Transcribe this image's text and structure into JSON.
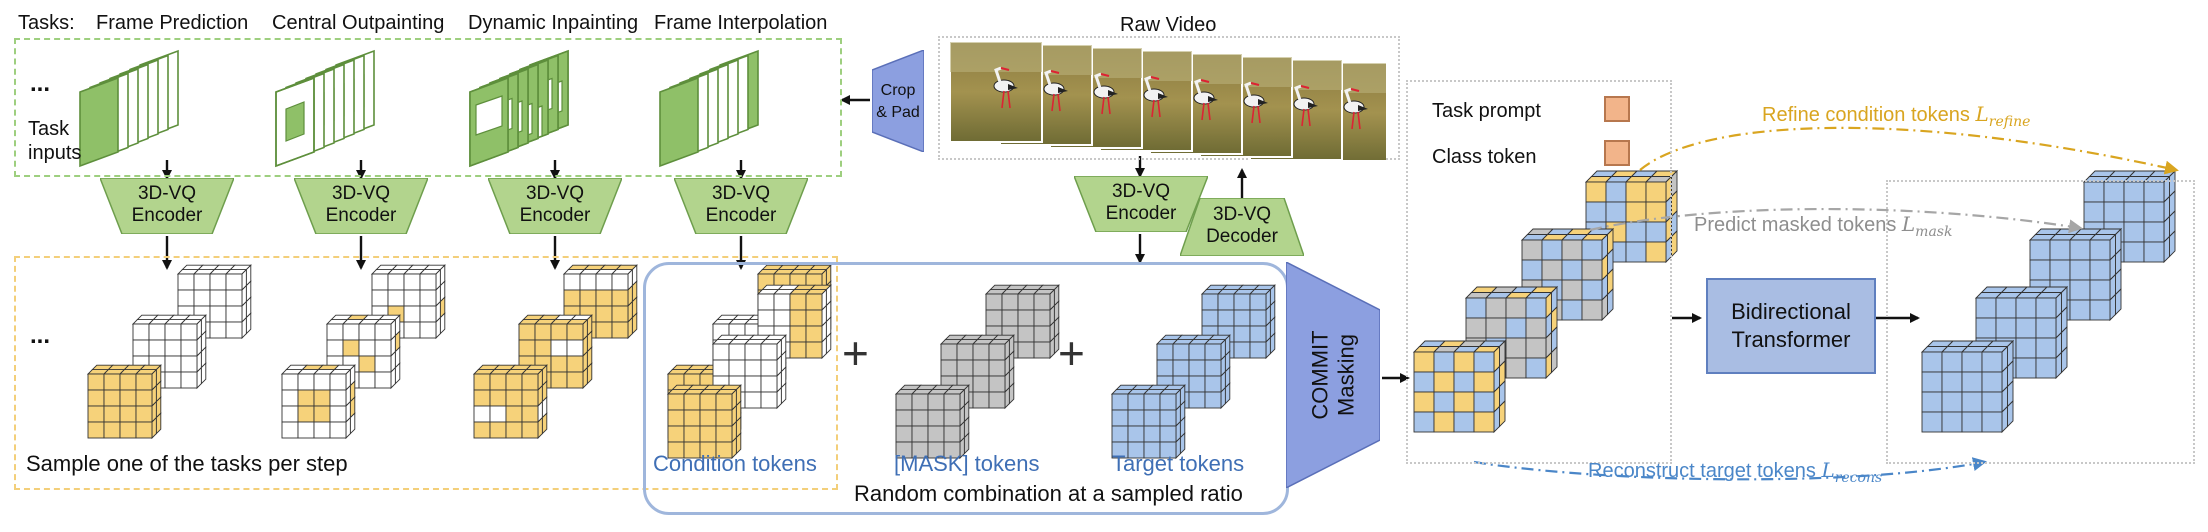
{
  "header": {
    "tasks_label": "Tasks:",
    "tasks": [
      "Frame Prediction",
      "Central Outpainting",
      "Dynamic Inpainting",
      "Frame Interpolation"
    ],
    "raw_video": "Raw Video"
  },
  "left": {
    "ellipsis_top": "...",
    "ellipsis_bottom": "...",
    "task_inputs_line1": "Task",
    "task_inputs_line2": "inputs",
    "encoder_line1": "3D-VQ",
    "encoder_line2": "Encoder",
    "sample_caption": "Sample one of the tasks per step"
  },
  "crop_pad": {
    "line1": "Crop",
    "line2": "& Pad"
  },
  "middle": {
    "encoder_line1": "3D-VQ",
    "encoder_line2": "Encoder",
    "decoder_line1": "3D-VQ",
    "decoder_line2": "Decoder",
    "condition_tokens": "Condition tokens",
    "mask_tokens": "[MASK] tokens",
    "target_tokens": "Target tokens",
    "random_combination": "Random combination at a sampled ratio",
    "plus": "+",
    "commit_line1": "COMMIT",
    "commit_line2": "Masking"
  },
  "right": {
    "task_prompt": "Task prompt",
    "class_token": "Class token",
    "refine_label": "Refine condition tokens",
    "refine_sub": "refine",
    "predict_label": "Predict masked tokens",
    "predict_sub": "mask",
    "recons_label": "Reconstruct target tokens",
    "recons_sub": "recons",
    "loss_symbol": "L",
    "transformer_line1": "Bidirectional",
    "transformer_line2": "Transformer"
  },
  "colors": {
    "green_box": "#9ecf7f",
    "green_pane": "#8fc068",
    "yellow_token": "#f6d27a",
    "blue_token": "#a9c5ea",
    "grey_token": "#c4c4c4",
    "orange_token": "#f2b48a",
    "refine_color": "#d9a520",
    "predict_color": "#a6a6a6",
    "recons_color": "#4a86c8",
    "commit_fill": "#8c9fe0"
  },
  "icons": {
    "arrow": "arrow-icon",
    "cube": "token-cube-icon"
  }
}
